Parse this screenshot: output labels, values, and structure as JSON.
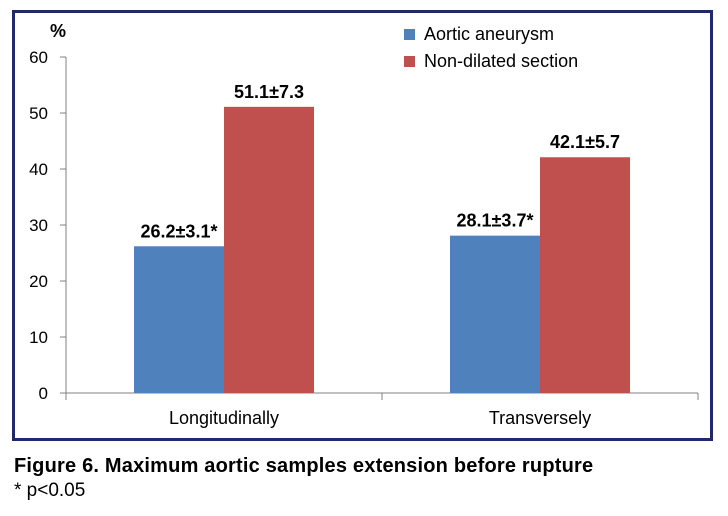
{
  "chart_data": {
    "type": "bar",
    "categories": [
      "Longitudinally",
      "Transversely"
    ],
    "series": [
      {
        "name": "Aortic aneurysm",
        "values": [
          26.2,
          28.1
        ],
        "labels": [
          "26.2±3.1*",
          "28.1±3.7*"
        ],
        "color": "#4f81bd"
      },
      {
        "name": "Non-dilated section",
        "values": [
          51.1,
          42.1
        ],
        "labels": [
          "51.1±7.3",
          "42.1±5.7"
        ],
        "color": "#c0504d"
      }
    ],
    "ylabel": "%",
    "ylim": [
      0,
      60
    ],
    "yticks": [
      0,
      10,
      20,
      30,
      40,
      50,
      60
    ],
    "grid": false,
    "legend": "top-right"
  },
  "caption": {
    "title": "Figure 6. Maximum aortic samples extension before rupture",
    "note": "* p<0.05"
  }
}
